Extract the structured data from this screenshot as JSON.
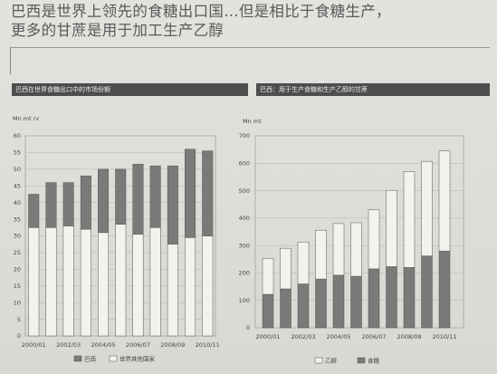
{
  "headline": {
    "line1": "巴西是世界上领先的食糖出口国...但是相比于食糖生产，",
    "line2": "更多的甘蔗是用于加工生产乙醇"
  },
  "chart_data": [
    {
      "type": "bar",
      "stacked": true,
      "title": "巴西在世界食糖出口中的市场份额",
      "ylabel": "Mn mt rv",
      "ylim": [
        0,
        60
      ],
      "yticks": [
        0,
        5,
        10,
        15,
        20,
        25,
        30,
        35,
        40,
        45,
        50,
        55,
        60
      ],
      "categories": [
        "2000/01",
        "2001/02",
        "2002/03",
        "2003/04",
        "2004/05",
        "2005/06",
        "2006/07",
        "2007/08",
        "2008/09",
        "2009/10",
        "2010/11"
      ],
      "xtick_labels": [
        "2000/01",
        "2002/03",
        "2004/05",
        "2006/07",
        "2008/09",
        "2010/11"
      ],
      "series": [
        {
          "name": "世界其他国家",
          "color": "#f2f2ee",
          "values": [
            32.5,
            32.5,
            33,
            32,
            31,
            33.5,
            30.5,
            32.5,
            27.5,
            29.5,
            30
          ]
        },
        {
          "name": "巴西",
          "color": "#7a7a78",
          "values": [
            10,
            13.5,
            13,
            16,
            19,
            16.5,
            21,
            18.5,
            23.5,
            26.5,
            25.5
          ]
        }
      ],
      "legend_position": "bottom",
      "grid": "horizontal"
    },
    {
      "type": "bar",
      "stacked": true,
      "title": "巴西：用于生产食糖和生产乙醇的甘蔗",
      "ylabel": "Mn mt",
      "ylim": [
        0,
        700
      ],
      "yticks": [
        0,
        100,
        200,
        300,
        400,
        500,
        600,
        700
      ],
      "categories": [
        "2000/01",
        "2001/02",
        "2002/03",
        "2003/04",
        "2004/05",
        "2005/06",
        "2006/07",
        "2007/08",
        "2008/09",
        "2009/10",
        "2010/11"
      ],
      "xtick_labels": [
        "2000/01",
        "2002/03",
        "2004/05",
        "2006/07",
        "2008/09",
        "2010/11"
      ],
      "series": [
        {
          "name": "食糖",
          "color": "#7a7a78",
          "values": [
            122,
            142,
            160,
            178,
            192,
            188,
            215,
            223,
            220,
            262,
            280
          ]
        },
        {
          "name": "乙醇",
          "color": "#f2f2ee",
          "values": [
            131,
            148,
            153,
            178,
            188,
            195,
            215,
            278,
            350,
            345,
            365
          ]
        }
      ],
      "legend_order": [
        "乙醇",
        "食糖"
      ],
      "legend_position": "bottom",
      "grid": "horizontal"
    }
  ]
}
